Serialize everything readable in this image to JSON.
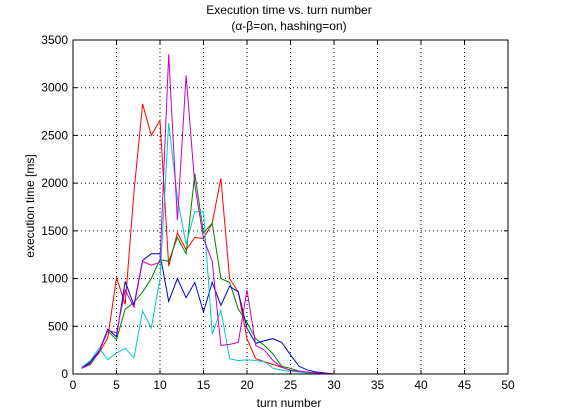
{
  "chart_data": {
    "type": "line",
    "title": "Execution time vs. turn number",
    "subtitle": "(α-β=on, hashing=on)",
    "xlabel": "turn number",
    "ylabel": "execution time [ms]",
    "xlim": [
      0,
      50
    ],
    "ylim": [
      0,
      3500
    ],
    "xticks": [
      0,
      5,
      10,
      15,
      20,
      25,
      30,
      35,
      40,
      45,
      50
    ],
    "yticks": [
      0,
      500,
      1000,
      1500,
      2000,
      2500,
      3000,
      3500
    ],
    "grid": true,
    "colors": {
      "series_red": "#ff0000",
      "series_green": "#008000",
      "series_blue": "#0000c8",
      "series_cyan": "#00c8c8",
      "series_magenta": "#c800c8",
      "axis": "#000000",
      "grid": "#000000"
    },
    "series": [
      {
        "color_key": "series_red",
        "x": [
          1,
          2,
          3,
          4,
          5,
          6,
          7,
          8,
          9,
          10,
          11,
          12,
          13,
          14,
          15,
          16,
          17,
          18,
          19,
          20,
          21,
          22,
          23,
          24,
          25,
          26,
          27,
          28,
          29,
          30,
          35,
          40,
          45,
          50
        ],
        "y": [
          60,
          120,
          220,
          380,
          1010,
          730,
          1900,
          2830,
          2500,
          2660,
          1130,
          1480,
          1300,
          1430,
          1420,
          1580,
          2050,
          1000,
          860,
          370,
          160,
          130,
          100,
          70,
          40,
          25,
          15,
          10,
          5,
          0,
          0,
          0,
          0,
          0
        ]
      },
      {
        "color_key": "series_green",
        "x": [
          1,
          2,
          3,
          4,
          5,
          6,
          7,
          8,
          9,
          10,
          11,
          12,
          13,
          14,
          15,
          16,
          17,
          18,
          19,
          20,
          21,
          22,
          23,
          24,
          25,
          26,
          27,
          28,
          29,
          30,
          35,
          40,
          45,
          50
        ],
        "y": [
          60,
          110,
          240,
          450,
          360,
          680,
          750,
          860,
          1000,
          1200,
          1180,
          1430,
          1260,
          2100,
          1480,
          1580,
          1000,
          960,
          680,
          540,
          370,
          300,
          210,
          80,
          60,
          30,
          15,
          10,
          5,
          0,
          0,
          0,
          0,
          0
        ]
      },
      {
        "color_key": "series_blue",
        "x": [
          1,
          2,
          3,
          4,
          5,
          6,
          7,
          8,
          9,
          10,
          11,
          12,
          13,
          14,
          15,
          16,
          17,
          18,
          19,
          20,
          21,
          22,
          23,
          24,
          25,
          26,
          27,
          28,
          29,
          30,
          35,
          40,
          45,
          50
        ],
        "y": [
          60,
          130,
          240,
          470,
          390,
          970,
          720,
          1190,
          1260,
          1260,
          760,
          1000,
          800,
          960,
          650,
          960,
          720,
          920,
          860,
          480,
          320,
          350,
          370,
          330,
          200,
          80,
          40,
          20,
          10,
          0,
          0,
          0,
          0,
          0
        ]
      },
      {
        "color_key": "series_cyan",
        "x": [
          1,
          2,
          3,
          4,
          5,
          6,
          7,
          8,
          9,
          10,
          11,
          12,
          13,
          14,
          15,
          16,
          17,
          18,
          19,
          20,
          21,
          22,
          23,
          24,
          25,
          26,
          27,
          28,
          29,
          30,
          35,
          40,
          45,
          50
        ],
        "y": [
          70,
          140,
          270,
          150,
          220,
          270,
          170,
          660,
          480,
          1000,
          2630,
          1840,
          1360,
          1700,
          1700,
          420,
          670,
          160,
          140,
          150,
          140,
          130,
          60,
          40,
          30,
          20,
          10,
          5,
          0,
          0,
          0,
          0,
          0,
          0
        ]
      },
      {
        "color_key": "series_magenta",
        "x": [
          1,
          2,
          3,
          4,
          5,
          6,
          7,
          8,
          9,
          10,
          11,
          12,
          13,
          14,
          15,
          16,
          17,
          18,
          19,
          20,
          21,
          22,
          23,
          24,
          25,
          26,
          27,
          28,
          29,
          30,
          35,
          40,
          45,
          50
        ],
        "y": [
          60,
          100,
          230,
          460,
          430,
          880,
          700,
          1180,
          1140,
          1170,
          3350,
          1610,
          3130,
          1980,
          1420,
          1180,
          300,
          310,
          330,
          880,
          300,
          250,
          140,
          70,
          40,
          30,
          20,
          10,
          5,
          0,
          0,
          0,
          0,
          0
        ]
      }
    ]
  }
}
